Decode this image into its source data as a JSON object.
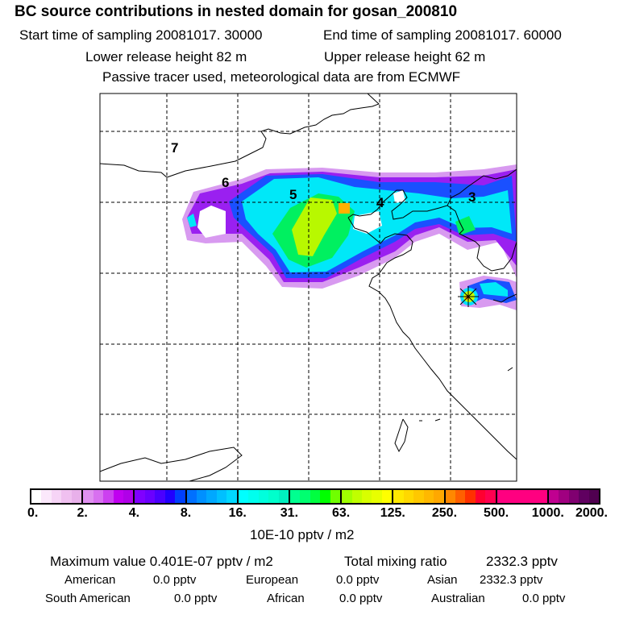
{
  "header": {
    "title": "BC  source contributions in nested domain for gosan_200810",
    "start_label": "Start time of sampling 20081017. 30000",
    "end_label": "End time of sampling 20081017. 60000",
    "lower_label": "Lower release height   82 m",
    "upper_label": "Upper release height   62 m",
    "note": "Passive tracer used, meteorological data are from ECMWF"
  },
  "map": {
    "region_labels": [
      "7",
      "6",
      "5",
      "4",
      "3"
    ],
    "receptor_icon": "star-marker-icon"
  },
  "colorbar": {
    "ticks": [
      "0.",
      "2.",
      "4.",
      "8.",
      "16.",
      "31.",
      "63.",
      "125.",
      "250.",
      "500.",
      "1000.",
      "2000."
    ],
    "unit": "10E-10 pptv / m2",
    "segments": [
      [
        "#ffffff",
        "#fbe8fb",
        "#f6d4f6",
        "#f0c0f0",
        "#e8b0ea"
      ],
      [
        "#e090f0",
        "#d870f0",
        "#cc40f0",
        "#c000f0",
        "#b000e8"
      ],
      [
        "#8000ff",
        "#6a00ff",
        "#4a00ff",
        "#2000ff",
        "#0040ff"
      ],
      [
        "#0070ff",
        "#0090ff",
        "#00a8ff",
        "#00c0ff",
        "#00d8ff"
      ],
      [
        "#00ffff",
        "#00ffee",
        "#00ffdd",
        "#00ffcc",
        "#00f0c0"
      ],
      [
        "#00ff90",
        "#00ff70",
        "#00ff40",
        "#00ff00",
        "#70ff00"
      ],
      [
        "#a0ff00",
        "#c0ff00",
        "#d8ff00",
        "#e8ff00",
        "#ffff00"
      ],
      [
        "#ffe800",
        "#ffd800",
        "#ffc800",
        "#ffb800",
        "#ffa800"
      ],
      [
        "#ff8800",
        "#ff6000",
        "#ff3000",
        "#ff0030",
        "#ff0050"
      ],
      [
        "#ff0080",
        "#ff0080",
        "#ff0080",
        "#ff0080",
        "#ff0080"
      ],
      [
        "#c00090",
        "#a00080",
        "#800070",
        "#600060",
        "#500050"
      ]
    ]
  },
  "summary": {
    "max_label": "Maximum value  0.401E-07 pptv / m2",
    "total_label": "Total mixing ratio",
    "total_value": "2332.3 pptv",
    "rows": [
      [
        {
          "label": "American",
          "value": "0.0 pptv"
        },
        {
          "label": "European",
          "value": "0.0 pptv"
        },
        {
          "label": "Asian",
          "value": "2332.3 pptv"
        }
      ],
      [
        {
          "label": "South American",
          "value": "0.0 pptv"
        },
        {
          "label": "African",
          "value": "0.0 pptv"
        },
        {
          "label": "Australian",
          "value": "0.0 pptv"
        }
      ]
    ]
  }
}
